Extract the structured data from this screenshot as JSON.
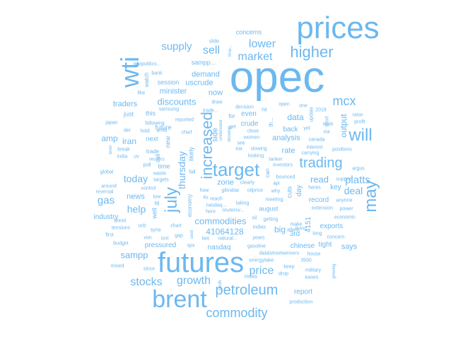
{
  "accent_color": "#6cb8f0",
  "words": [
    {
      "text": "opec",
      "weight": 100
    },
    {
      "text": "prices",
      "weight": 72
    },
    {
      "text": "futures",
      "weight": 62
    },
    {
      "text": "brent",
      "weight": 55
    },
    {
      "text": "wti",
      "weight": 55
    },
    {
      "text": "target",
      "weight": 44
    },
    {
      "text": "july",
      "weight": 40
    },
    {
      "text": "will",
      "weight": 40
    },
    {
      "text": "may",
      "weight": 40
    },
    {
      "text": "increased",
      "weight": 38
    },
    {
      "text": "higher",
      "weight": 36
    },
    {
      "text": "trading",
      "weight": 32
    },
    {
      "text": "petroleum",
      "weight": 30
    },
    {
      "text": "commodity",
      "weight": 29
    },
    {
      "text": "mcx",
      "weight": 28
    },
    {
      "text": "lower",
      "weight": 26
    },
    {
      "text": "sell",
      "weight": 26
    },
    {
      "text": "market",
      "weight": 26
    },
    {
      "text": "growth",
      "weight": 26
    },
    {
      "text": "stocks",
      "weight": 26
    },
    {
      "text": "price",
      "weight": 26
    },
    {
      "text": "thursday",
      "weight": 24
    },
    {
      "text": "supply",
      "weight": 24
    },
    {
      "text": "gas",
      "weight": 24
    },
    {
      "text": "platts",
      "weight": 24
    },
    {
      "text": "today",
      "weight": 22
    },
    {
      "text": "help",
      "weight": 22
    },
    {
      "text": "deal",
      "weight": 22
    },
    {
      "text": "read",
      "weight": 20
    },
    {
      "text": "output",
      "weight": 20
    },
    {
      "text": "discounts",
      "weight": 20
    },
    {
      "text": "iran",
      "weight": 20
    },
    {
      "text": "sampp",
      "weight": 20
    },
    {
      "text": "commodities",
      "weight": 20
    },
    {
      "text": "41064128",
      "weight": 20
    },
    {
      "text": "amp",
      "weight": 20
    },
    {
      "text": "news",
      "weight": 18
    },
    {
      "text": "zone",
      "weight": 18
    },
    {
      "text": "big",
      "weight": 18
    },
    {
      "text": "says",
      "weight": 16
    },
    {
      "text": "data",
      "weight": 18
    },
    {
      "text": "traders",
      "weight": 18
    },
    {
      "text": "minister",
      "weight": 18
    },
    {
      "text": "demand",
      "weight": 18
    },
    {
      "text": "uscrude",
      "weight": 18
    },
    {
      "text": "now",
      "weight": 18
    },
    {
      "text": "side",
      "weight": 18
    },
    {
      "text": "rate",
      "weight": 18
    },
    {
      "text": "analysis",
      "weight": 17
    },
    {
      "text": "crude",
      "weight": 16
    },
    {
      "text": "even",
      "weight": 16
    },
    {
      "text": "back",
      "weight": 16
    },
    {
      "text": "3rd",
      "weight": 16
    },
    {
      "text": "record",
      "weight": 16
    },
    {
      "text": "key",
      "weight": 16
    },
    {
      "text": "exports",
      "weight": 16
    },
    {
      "text": "tight",
      "weight": 16
    },
    {
      "text": "4151",
      "weight": 16
    },
    {
      "text": "nasdaq",
      "weight": 16
    },
    {
      "text": "chinese",
      "weight": 16
    },
    {
      "text": "report",
      "weight": 16
    },
    {
      "text": "pressured",
      "weight": 16
    },
    {
      "text": "industry",
      "weight": 16
    },
    {
      "text": "day",
      "weight": 16
    },
    {
      "text": "concerns",
      "weight": 14
    },
    {
      "text": "sampp...",
      "weight": 14
    },
    {
      "text": "session",
      "weight": 14
    },
    {
      "text": "just",
      "weight": 14
    },
    {
      "text": "this",
      "weight": 14
    },
    {
      "text": "future",
      "weight": 14
    },
    {
      "text": "next",
      "weight": 14
    },
    {
      "text": "new",
      "weight": 14
    },
    {
      "text": "likely",
      "weight": 14
    },
    {
      "text": "time",
      "weight": 14
    },
    {
      "text": "well",
      "weight": 14
    },
    {
      "text": "cuts",
      "weight": 14
    },
    {
      "text": "august",
      "weight": 14
    },
    {
      "text": "economy",
      "weight": 12
    },
    {
      "text": "watch",
      "weight": 12
    },
    {
      "text": "call",
      "weight": 12
    },
    {
      "text": "trade",
      "weight": 12
    },
    {
      "text": "for",
      "weight": 12
    },
    {
      "text": "can",
      "weight": 12
    },
    {
      "text": "th...",
      "weight": 12
    },
    {
      "text": "bank",
      "weight": 10
    },
    {
      "text": "geopolitics...",
      "weight": 10
    },
    {
      "text": "slide",
      "weight": 10
    },
    {
      "text": "time...",
      "weight": 10
    },
    {
      "text": "like",
      "weight": 10
    },
    {
      "text": "samsung",
      "weight": 10
    },
    {
      "text": "trade...",
      "weight": 10
    },
    {
      "text": "draw",
      "weight": 10
    },
    {
      "text": "decision",
      "weight": 10
    },
    {
      "text": "hit",
      "weight": 10
    },
    {
      "text": "open",
      "weight": 10
    },
    {
      "text": "one",
      "weight": 10
    },
    {
      "text": "update",
      "weight": 10
    },
    {
      "text": "2018",
      "weight": 10
    },
    {
      "text": "short",
      "weight": 10
    },
    {
      "text": "raise",
      "weight": 10
    },
    {
      "text": "profit",
      "weight": 10
    },
    {
      "text": "state",
      "weight": 10
    },
    {
      "text": "via",
      "weight": 10
    },
    {
      "text": "japan",
      "weight": 10
    },
    {
      "text": "following",
      "weight": 10
    },
    {
      "text": "reported",
      "weight": 10
    },
    {
      "text": "chief",
      "weight": 10
    },
    {
      "text": "der",
      "weight": 10
    },
    {
      "text": "hold",
      "weight": 10
    },
    {
      "text": "amid",
      "weight": 10
    },
    {
      "text": "underwater",
      "weight": 10
    },
    {
      "text": "showing",
      "weight": 10
    },
    {
      "text": "get",
      "weight": 10
    },
    {
      "text": "women",
      "weight": 10
    },
    {
      "text": "close",
      "weight": 10
    },
    {
      "text": "see",
      "weight": 10
    },
    {
      "text": "eia",
      "weight": 10
    },
    {
      "text": "slowing",
      "weight": 10
    },
    {
      "text": "looking",
      "weight": 10
    },
    {
      "text": "canada",
      "weight": 10
    },
    {
      "text": "yet",
      "weight": 10
    },
    {
      "text": "interest",
      "weight": 10
    },
    {
      "text": "carrying",
      "weight": 10
    },
    {
      "text": "positions",
      "weight": 10
    },
    {
      "text": "argus",
      "weight": 10
    },
    {
      "text": "lever",
      "weight": 10
    },
    {
      "text": "break",
      "weight": 10
    },
    {
      "text": "india",
      "weight": 10
    },
    {
      "text": "uv",
      "weight": 10
    },
    {
      "text": "poll",
      "weight": 10
    },
    {
      "text": "reuters",
      "weight": 10
    },
    {
      "text": "fall",
      "weight": 10
    },
    {
      "text": "tanker",
      "weight": 10
    },
    {
      "text": "investors",
      "weight": 10
    },
    {
      "text": "bounced",
      "weight": 10
    },
    {
      "text": "api",
      "weight": 10
    },
    {
      "text": "why",
      "weight": 10
    },
    {
      "text": "heres",
      "weight": 10
    },
    {
      "text": "support",
      "weight": 10
    },
    {
      "text": "global",
      "weight": 10
    },
    {
      "text": "waste",
      "weight": 10
    },
    {
      "text": "targets",
      "weight": 10
    },
    {
      "text": "around",
      "weight": 10
    },
    {
      "text": "control",
      "weight": 10
    },
    {
      "text": "clearly",
      "weight": 10
    },
    {
      "text": "oilprice",
      "weight": 10
    },
    {
      "text": "meeting",
      "weight": 10
    },
    {
      "text": "anyone",
      "weight": 10
    },
    {
      "text": "reversal",
      "weight": 10
    },
    {
      "text": "low",
      "weight": 10
    },
    {
      "text": "fill",
      "weight": 10
    },
    {
      "text": "how",
      "weight": 10
    },
    {
      "text": "gibraltar",
      "weight": 10
    },
    {
      "text": "its",
      "weight": 10
    },
    {
      "text": "reach",
      "weight": 10
    },
    {
      "text": "taking",
      "weight": 10
    },
    {
      "text": "extension",
      "weight": 10
    },
    {
      "text": "power",
      "weight": 10
    },
    {
      "text": "nasdaq...",
      "weight": 10
    },
    {
      "text": "economic",
      "weight": 10
    },
    {
      "text": "brexit",
      "weight": 10
    },
    {
      "text": "chart",
      "weight": 10
    },
    {
      "text": "reutersv...",
      "weight": 10
    },
    {
      "text": "tensions",
      "weight": 10
    },
    {
      "text": "ucb",
      "weight": 10
    },
    {
      "text": "here",
      "weight": 10
    },
    {
      "text": "oil",
      "weight": 10
    },
    {
      "text": "getting",
      "weight": 10
    },
    {
      "text": "first",
      "weight": 10
    },
    {
      "text": "syria",
      "weight": 10
    },
    {
      "text": "gap",
      "weight": 10
    },
    {
      "text": "usoil",
      "weight": 10
    },
    {
      "text": "years",
      "weight": 10
    },
    {
      "text": "indias",
      "weight": 10
    },
    {
      "text": "make",
      "weight": 10
    },
    {
      "text": "allies",
      "weight": 10
    },
    {
      "text": "long",
      "weight": 10
    },
    {
      "text": "concern",
      "weight": 10
    },
    {
      "text": "von",
      "weight": 10
    },
    {
      "text": "isnt",
      "weight": 10
    },
    {
      "text": "two",
      "weight": 10
    },
    {
      "text": "natural...",
      "weight": 10
    },
    {
      "text": "budget",
      "weight": 10
    },
    {
      "text": "spx",
      "weight": 10
    },
    {
      "text": "dalalstreetwinners",
      "weight": 10
    },
    {
      "text": "house",
      "weight": 10
    },
    {
      "text": "gasoline",
      "weight": 10
    },
    {
      "text": "energytake",
      "weight": 10
    },
    {
      "text": "3930",
      "weight": 10
    },
    {
      "text": "mixed",
      "weight": 10
    },
    {
      "text": "keep",
      "weight": 10
    },
    {
      "text": "military",
      "weight": 10
    },
    {
      "text": "since",
      "weight": 10
    },
    {
      "text": "drop",
      "weight": 10
    },
    {
      "text": "eases",
      "weight": 10
    },
    {
      "text": "growing",
      "weight": 10
    },
    {
      "text": "indias",
      "weight": 10
    },
    {
      "text": "south",
      "weight": 10
    },
    {
      "text": "production",
      "weight": 10
    },
    {
      "text": "living",
      "weight": 10
    }
  ]
}
